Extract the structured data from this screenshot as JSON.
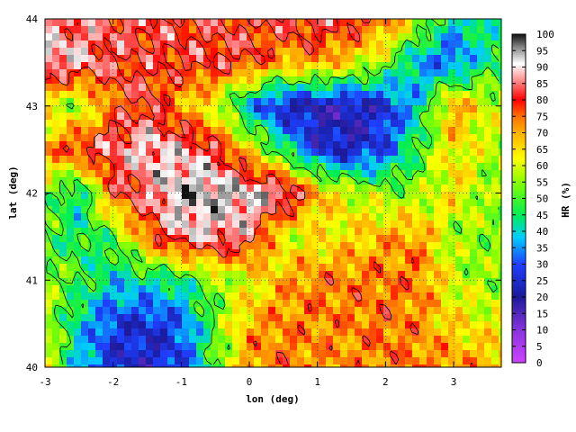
{
  "chart_data": {
    "type": "heatmap",
    "title": "",
    "xlabel": "lon (deg)",
    "ylabel": "lat (deg)",
    "xlim": [
      -3,
      3.7
    ],
    "ylim": [
      40,
      44
    ],
    "x_ticks": [
      "-3",
      "-2",
      "-1",
      "0",
      "1",
      "2",
      "3"
    ],
    "y_ticks": [
      "40",
      "41",
      "42",
      "43",
      "44"
    ],
    "grid": true,
    "colorbar": {
      "label": "HR (%)",
      "min": 0,
      "max": 100,
      "ticks": [
        "0",
        "5",
        "10",
        "15",
        "20",
        "25",
        "30",
        "35",
        "40",
        "45",
        "50",
        "55",
        "60",
        "65",
        "70",
        "75",
        "80",
        "85",
        "90",
        "95",
        "100"
      ],
      "stops": [
        {
          "v": 0,
          "color": "#cc44ff"
        },
        {
          "v": 10,
          "color": "#8833dd"
        },
        {
          "v": 20,
          "color": "#1a1a99"
        },
        {
          "v": 30,
          "color": "#1f3fff"
        },
        {
          "v": 38,
          "color": "#00ccff"
        },
        {
          "v": 45,
          "color": "#00ee55"
        },
        {
          "v": 55,
          "color": "#88ff00"
        },
        {
          "v": 62,
          "color": "#ffff00"
        },
        {
          "v": 70,
          "color": "#ffb000"
        },
        {
          "v": 75,
          "color": "#ff7000"
        },
        {
          "v": 80,
          "color": "#ff0000"
        },
        {
          "v": 86,
          "color": "#ff9090"
        },
        {
          "v": 91,
          "color": "#ffffff"
        },
        {
          "v": 96,
          "color": "#888888"
        },
        {
          "v": 100,
          "color": "#111111"
        }
      ]
    },
    "field": {
      "lon": [
        -3.0,
        -2.5,
        -2.0,
        -1.5,
        -1.0,
        -0.5,
        0.0,
        0.5,
        1.0,
        1.5,
        2.0,
        2.5,
        3.0,
        3.5
      ],
      "lat": [
        44.0,
        43.5,
        43.0,
        42.5,
        42.0,
        41.5,
        41.0,
        40.5,
        40.0
      ],
      "hr": [
        [
          85,
          84,
          83,
          82,
          82,
          80,
          80,
          82,
          83,
          82,
          75,
          60,
          40,
          45
        ],
        [
          92,
          88,
          82,
          80,
          80,
          82,
          80,
          70,
          72,
          65,
          55,
          35,
          30,
          45
        ],
        [
          60,
          55,
          75,
          82,
          70,
          60,
          35,
          22,
          20,
          20,
          25,
          40,
          72,
          60
        ],
        [
          70,
          82,
          85,
          90,
          88,
          82,
          65,
          45,
          25,
          22,
          30,
          50,
          65,
          58
        ],
        [
          55,
          40,
          78,
          85,
          95,
          95,
          92,
          90,
          70,
          60,
          55,
          55,
          65,
          55
        ],
        [
          50,
          45,
          50,
          75,
          88,
          88,
          85,
          60,
          62,
          65,
          70,
          72,
          55,
          55
        ],
        [
          55,
          50,
          40,
          42,
          45,
          55,
          60,
          70,
          74,
          74,
          74,
          74,
          60,
          55
        ],
        [
          60,
          40,
          28,
          25,
          30,
          52,
          70,
          73,
          73,
          73,
          75,
          72,
          65,
          62
        ],
        [
          62,
          38,
          25,
          22,
          28,
          50,
          72,
          75,
          72,
          72,
          74,
          74,
          72,
          70
        ]
      ]
    }
  }
}
